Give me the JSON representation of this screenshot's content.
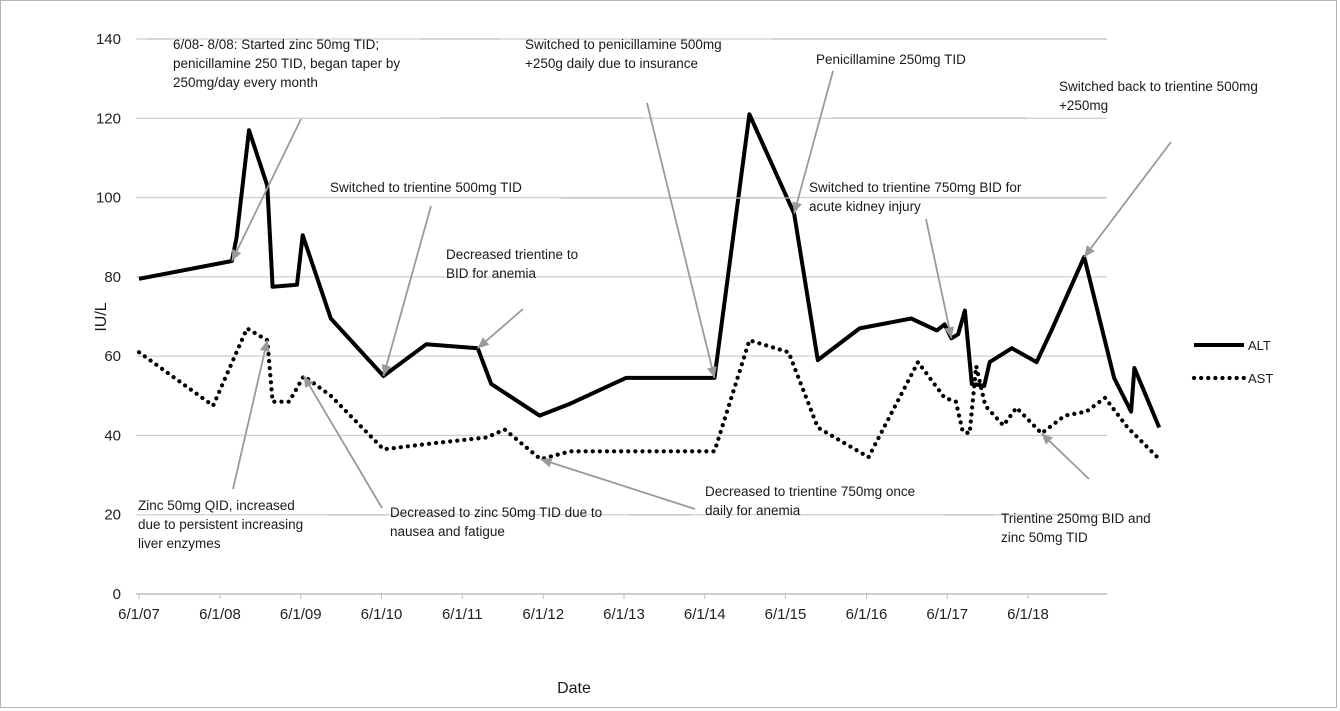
{
  "chart_data": {
    "type": "line",
    "title": "",
    "xlabel": "Date",
    "ylabel": "IU/L",
    "ylim": [
      0,
      140
    ],
    "yticks": [
      0,
      20,
      40,
      60,
      80,
      100,
      120,
      140
    ],
    "xlim": [
      "2007-06-01",
      "2019-10-01"
    ],
    "x_tick_labels": [
      "6/1/07",
      "6/1/08",
      "6/1/09",
      "6/1/10",
      "6/1/11",
      "6/1/12",
      "6/1/13",
      "6/1/14",
      "6/1/15",
      "6/1/16",
      "6/1/17",
      "6/1/18"
    ],
    "x_tick_dates": [
      "2007-06-01",
      "2008-06-01",
      "2009-06-01",
      "2010-06-01",
      "2011-06-01",
      "2012-06-01",
      "2013-06-01",
      "2014-06-01",
      "2015-06-01",
      "2016-06-01",
      "2017-06-01",
      "2018-06-01"
    ],
    "grid": true,
    "legend_position": "right",
    "series": [
      {
        "name": "ALT",
        "style": "solid",
        "color": "#000000",
        "points": [
          [
            "2007-06-01",
            79.5
          ],
          [
            "2008-07-25",
            84
          ],
          [
            "2008-08-15",
            90
          ],
          [
            "2008-10-10",
            117
          ],
          [
            "2009-01-01",
            103
          ],
          [
            "2009-01-25",
            77.5
          ],
          [
            "2009-05-15",
            78
          ],
          [
            "2009-06-10",
            90.5
          ],
          [
            "2009-10-15",
            69.5
          ],
          [
            "2010-06-10",
            55
          ],
          [
            "2010-12-20",
            63
          ],
          [
            "2011-08-10",
            62
          ],
          [
            "2011-10-10",
            53
          ],
          [
            "2012-05-15",
            45
          ],
          [
            "2012-10-01",
            48
          ],
          [
            "2013-06-10",
            54.5
          ],
          [
            "2014-07-15",
            54.5
          ],
          [
            "2014-12-20",
            121
          ],
          [
            "2015-07-10",
            96
          ],
          [
            "2015-10-25",
            59
          ],
          [
            "2016-05-01",
            67
          ],
          [
            "2016-12-20",
            69.5
          ],
          [
            "2017-04-15",
            66.5
          ],
          [
            "2017-05-20",
            68
          ],
          [
            "2017-06-20",
            64.5
          ],
          [
            "2017-07-20",
            65.5
          ],
          [
            "2017-08-20",
            71.5
          ],
          [
            "2017-09-20",
            53
          ],
          [
            "2017-11-15",
            52.5
          ],
          [
            "2017-12-10",
            58.5
          ],
          [
            "2018-03-20",
            62
          ],
          [
            "2018-07-10",
            58.5
          ],
          [
            "2018-09-15",
            66.5
          ],
          [
            "2019-02-10",
            85
          ],
          [
            "2019-06-25",
            54.5
          ],
          [
            "2019-09-10",
            46
          ],
          [
            "2019-09-25",
            57
          ],
          [
            "2020-01-15",
            42
          ]
        ]
      },
      {
        "name": "AST",
        "style": "dotted",
        "color": "#000000",
        "points": [
          [
            "2007-06-01",
            61
          ],
          [
            "2008-05-01",
            47.5
          ],
          [
            "2008-10-01",
            67
          ],
          [
            "2009-01-01",
            64
          ],
          [
            "2009-01-25",
            48.5
          ],
          [
            "2009-04-10",
            48.5
          ],
          [
            "2009-06-15",
            55
          ],
          [
            "2009-10-15",
            50
          ],
          [
            "2010-06-10",
            36.5
          ],
          [
            "2011-01-15",
            38
          ],
          [
            "2011-09-20",
            39.5
          ],
          [
            "2011-12-10",
            41.5
          ],
          [
            "2012-05-20",
            34
          ],
          [
            "2012-10-01",
            36
          ],
          [
            "2013-06-10",
            36
          ],
          [
            "2014-07-15",
            36
          ],
          [
            "2014-12-20",
            64
          ],
          [
            "2015-06-15",
            61
          ],
          [
            "2015-10-25",
            42
          ],
          [
            "2016-06-10",
            34.5
          ],
          [
            "2017-01-20",
            58.5
          ],
          [
            "2017-05-20",
            49.5
          ],
          [
            "2017-07-10",
            48.5
          ],
          [
            "2017-08-10",
            41
          ],
          [
            "2017-09-10",
            40.5
          ],
          [
            "2017-10-10",
            57.5
          ],
          [
            "2017-11-20",
            47.5
          ],
          [
            "2018-02-10",
            42.5
          ],
          [
            "2018-04-10",
            47
          ],
          [
            "2018-08-01",
            40.5
          ],
          [
            "2018-11-15",
            45
          ],
          [
            "2019-02-20",
            46
          ],
          [
            "2019-05-15",
            49.5
          ],
          [
            "2019-08-25",
            42
          ],
          [
            "2020-01-25",
            33.5
          ]
        ]
      }
    ],
    "annotations": [
      {
        "id": "zinc-tid-penicillamine",
        "lines": [
          "6/08- 8/08: Started zinc 50mg TID;",
          "penicillamine 250 TID, began taper by",
          "250mg/day every month"
        ],
        "points_to": [
          "2008-07-25",
          84
        ]
      },
      {
        "id": "zinc-qid",
        "lines": [
          "Zinc 50mg QID, increased",
          "due to persistent increasing",
          "liver enzymes"
        ],
        "points_to": [
          "2009-01-01",
          64
        ]
      },
      {
        "id": "zinc-tid-nausea",
        "lines": [
          "Decreased to zinc 50mg  TID due to",
          "nausea and fatigue"
        ],
        "points_to": [
          "2009-06-15",
          55
        ]
      },
      {
        "id": "trientine-500-tid",
        "lines": [
          "Switched to trientine 500mg TID"
        ],
        "points_to": [
          "2010-06-10",
          55
        ]
      },
      {
        "id": "trientine-bid-anemia",
        "lines": [
          "Decreased trientine to",
          "BID for anemia"
        ],
        "points_to": [
          "2011-08-10",
          62
        ]
      },
      {
        "id": "trientine-750-once",
        "lines": [
          "Decreased to trientine 750mg once",
          "daily for anemia"
        ],
        "points_to": [
          "2012-05-20",
          34
        ]
      },
      {
        "id": "penicillamine-insurance",
        "lines": [
          "Switched to penicillamine 500mg",
          "+250g daily due to insurance"
        ],
        "points_to": [
          "2014-07-15",
          54.5
        ]
      },
      {
        "id": "penicillamine-250-tid",
        "lines": [
          "Penicillamine 250mg TID"
        ],
        "points_to": [
          "2015-07-10",
          96
        ]
      },
      {
        "id": "trientine-750-bid",
        "lines": [
          "Switched to trientine 750mg BID for",
          "acute kidney injury"
        ],
        "points_to": [
          "2017-06-20",
          64.5
        ]
      },
      {
        "id": "trientine-250-bid-zinc",
        "lines": [
          "Trientine 250mg BID and",
          "zinc 50mg TID"
        ],
        "points_to": [
          "2018-08-01",
          40.5
        ]
      },
      {
        "id": "trientine-back",
        "lines": [
          "Switched back to trientine 500mg",
          "+250mg"
        ],
        "points_to": [
          "2019-02-10",
          85
        ]
      }
    ]
  }
}
